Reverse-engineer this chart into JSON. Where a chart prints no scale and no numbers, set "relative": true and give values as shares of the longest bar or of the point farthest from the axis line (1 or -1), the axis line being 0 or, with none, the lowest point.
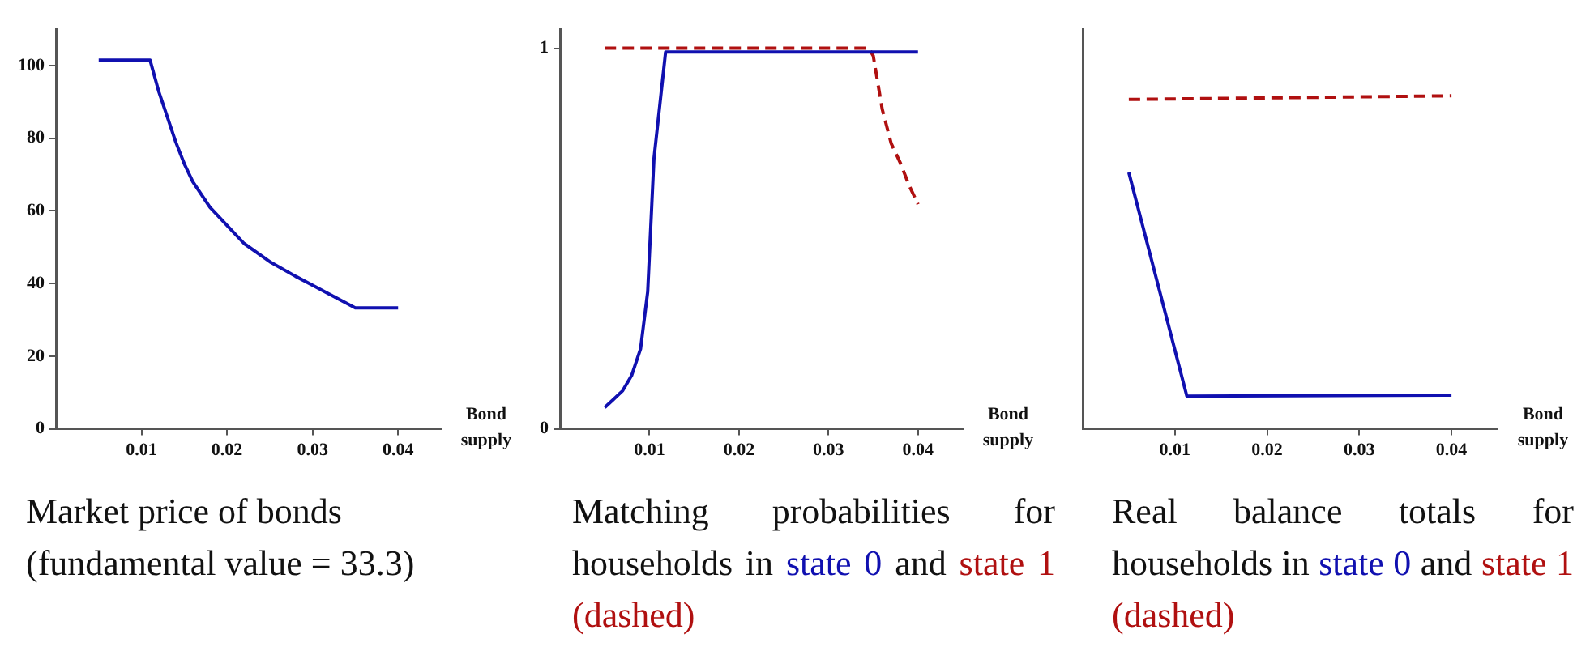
{
  "chart_data": [
    {
      "type": "line",
      "title": "Market price of bonds (fundamental value = 33.3)",
      "xlabel": "Bond supply",
      "xlim": [
        0,
        0.045
      ],
      "xticks": [
        0.01,
        0.02,
        0.03,
        0.04
      ],
      "ylim": [
        0,
        110
      ],
      "yticks": [
        0,
        20,
        40,
        60,
        80,
        100
      ],
      "marker": "none",
      "series": [
        {
          "color": "#1010b0",
          "line_style": "solid",
          "x": [
            0.005,
            0.011,
            0.012,
            0.013,
            0.014,
            0.015,
            0.016,
            0.018,
            0.02,
            0.022,
            0.025,
            0.028,
            0.03,
            0.032,
            0.035,
            0.04
          ],
          "values": [
            101.5,
            101.5,
            93,
            86,
            79,
            73,
            68,
            61,
            56,
            51,
            46,
            42,
            39.5,
            37,
            33.3,
            33.3
          ]
        }
      ]
    },
    {
      "type": "line",
      "title": "Matching probabilities for households in",
      "annotations": [
        "and"
      ],
      "xlabel": "Bond supply",
      "xlim": [
        0,
        0.045
      ],
      "xticks": [
        0.01,
        0.02,
        0.03,
        0.04
      ],
      "ylim": [
        0,
        1.05
      ],
      "yticks": [
        0,
        1
      ],
      "marker": "none",
      "series": [
        {
          "name": "state 0",
          "color": "#1010b0",
          "line_style": "solid",
          "x": [
            0.005,
            0.006,
            0.007,
            0.008,
            0.009,
            0.0098,
            0.0105,
            0.0118,
            0.04
          ],
          "values": [
            0.056,
            0.078,
            0.1,
            0.14,
            0.21,
            0.36,
            0.71,
            0.99,
            0.99
          ]
        },
        {
          "name": "state 1 (dashed)",
          "color": "#b01010",
          "line_style": "dashed",
          "x": [
            0.005,
            0.0345,
            0.035,
            0.036,
            0.037,
            0.038,
            0.039,
            0.04
          ],
          "values": [
            1,
            1,
            0.98,
            0.84,
            0.75,
            0.7,
            0.64,
            0.59
          ]
        }
      ]
    },
    {
      "type": "line",
      "title": "Real balance totals for households in",
      "annotations": [
        "and"
      ],
      "xlabel": "Bond supply",
      "xlim": [
        0,
        0.045
      ],
      "xticks": [
        0.01,
        0.02,
        0.03,
        0.04
      ],
      "relative": true,
      "tick_labels": "x",
      "marker": "none",
      "series": [
        {
          "name": "state 0",
          "color": "#1010b0",
          "line_style": "solid",
          "x": [
            0.005,
            0.0113,
            0.04
          ],
          "values": [
            0.77,
            0.098,
            0.101
          ]
        },
        {
          "name": "state 1 (dashed)",
          "color": "#b01010",
          "line_style": "dashed",
          "x": [
            0.005,
            0.04
          ],
          "values": [
            0.989,
            1
          ]
        }
      ]
    }
  ]
}
